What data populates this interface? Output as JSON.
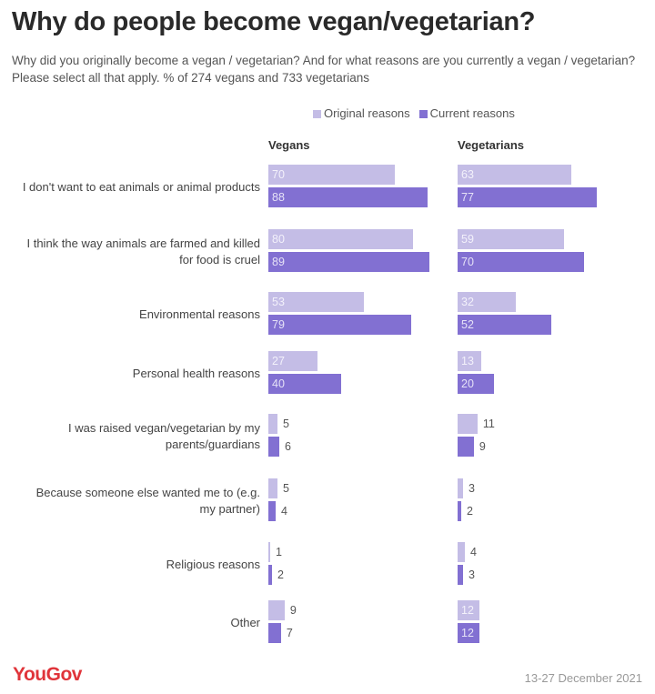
{
  "title": "Why do people become vegan/vegetarian?",
  "subtitle": "Why did you originally become a vegan / vegetarian? And for what reasons are you currently a vegan / vegetarian? Please select all that apply. % of 274 vegans and 733 vegetarians",
  "footer": {
    "logo": "YouGov",
    "date": "13-27 December 2021"
  },
  "colors": {
    "original": "#c4bde6",
    "current": "#8270d2"
  },
  "chart_data": {
    "type": "bar",
    "orientation": "horizontal",
    "legend": [
      "Original reasons",
      "Current reasons"
    ],
    "legend_position": "top",
    "groups": [
      "Vegans",
      "Vegetarians"
    ],
    "categories": [
      "I don't want to eat animals or animal products",
      "I think the way animals are farmed and killed for food is cruel",
      "Environmental reasons",
      "Personal health reasons",
      "I was raised vegan/vegetarian by my parents/guardians",
      "Because someone else wanted me to (e.g. my partner)",
      "Religious reasons",
      "Other"
    ],
    "panels": [
      {
        "name": "Vegans",
        "series": [
          {
            "name": "Original reasons",
            "values": [
              70,
              80,
              53,
              27,
              5,
              5,
              1,
              9
            ]
          },
          {
            "name": "Current reasons",
            "values": [
              88,
              89,
              79,
              40,
              6,
              4,
              2,
              7
            ]
          }
        ]
      },
      {
        "name": "Vegetarians",
        "series": [
          {
            "name": "Original reasons",
            "values": [
              63,
              59,
              32,
              13,
              11,
              3,
              4,
              12
            ]
          },
          {
            "name": "Current reasons",
            "values": [
              77,
              70,
              52,
              20,
              9,
              2,
              3,
              12
            ]
          }
        ]
      }
    ],
    "grid": false
  }
}
